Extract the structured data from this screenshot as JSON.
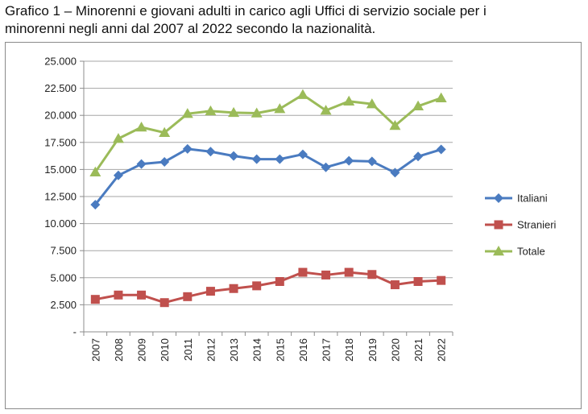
{
  "caption": {
    "line1": "Grafico 1 – Minorenni e giovani adulti in carico agli Uffici di servizio sociale per i",
    "line2": "minorenni negli anni dal 2007 al 2022 secondo la nazionalità."
  },
  "chart_data": {
    "type": "line",
    "title": "",
    "xlabel": "",
    "ylabel": "",
    "categories": [
      "2007",
      "2008",
      "2009",
      "2010",
      "2011",
      "2012",
      "2013",
      "2014",
      "2015",
      "2016",
      "2017",
      "2018",
      "2019",
      "2020",
      "2021",
      "2022"
    ],
    "yticks": [
      "-",
      "2.500",
      "5.000",
      "7.500",
      "10.000",
      "12.500",
      "15.000",
      "17.500",
      "20.000",
      "22.500",
      "25.000"
    ],
    "ylim": [
      0,
      25000
    ],
    "grid": true,
    "legend_position": "right",
    "series": [
      {
        "name": "Italiani",
        "color": "#4a7bc0",
        "marker": "diamond",
        "values": [
          11750,
          14450,
          15500,
          15700,
          16900,
          16650,
          16250,
          15950,
          15950,
          16400,
          15200,
          15800,
          15750,
          14700,
          16200,
          16850
        ]
      },
      {
        "name": "Stranieri",
        "color": "#c0504d",
        "marker": "square",
        "values": [
          3000,
          3400,
          3400,
          2700,
          3250,
          3750,
          4000,
          4250,
          4650,
          5500,
          5250,
          5500,
          5300,
          4350,
          4650,
          4750
        ]
      },
      {
        "name": "Totale",
        "color": "#9bbb59",
        "marker": "triangle",
        "values": [
          14750,
          17850,
          18900,
          18400,
          20150,
          20400,
          20250,
          20200,
          20600,
          21900,
          20450,
          21300,
          21050,
          19050,
          20850,
          21600
        ]
      }
    ]
  }
}
